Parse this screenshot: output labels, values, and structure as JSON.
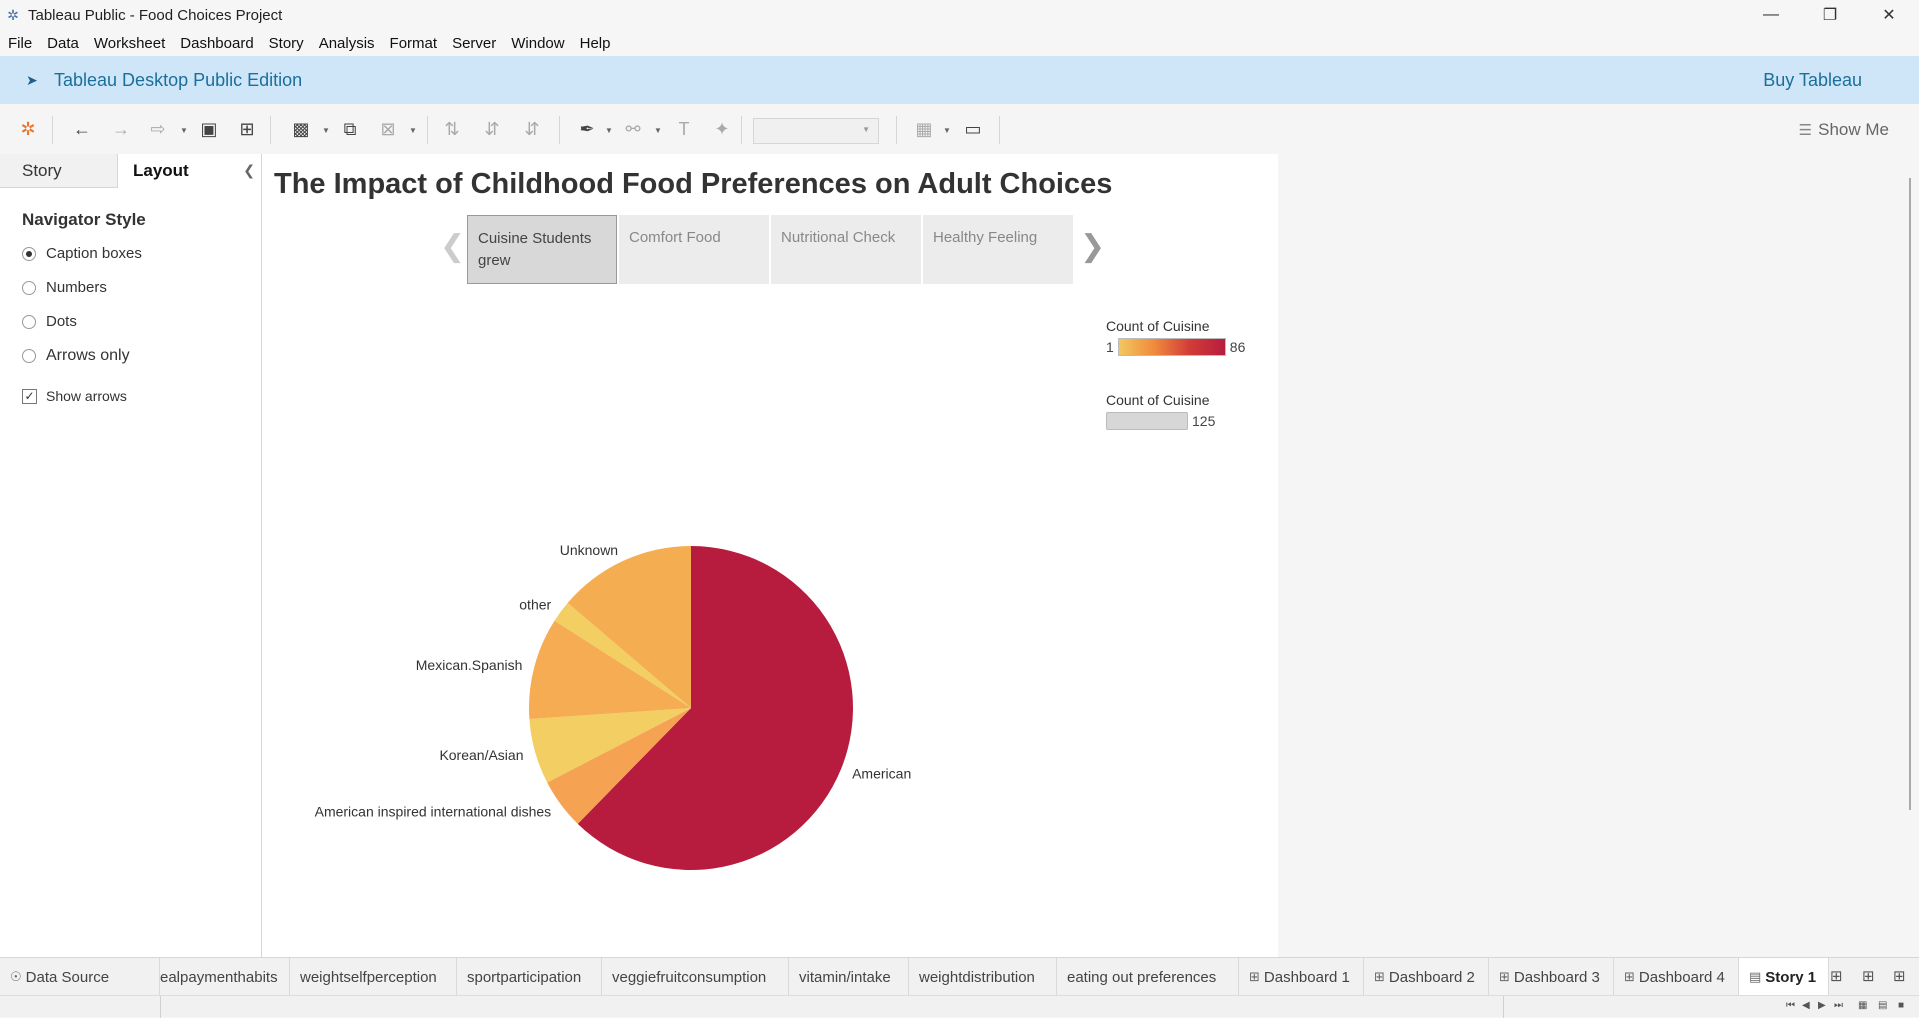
{
  "window": {
    "title": "Tableau Public - Food Choices Project",
    "controls": [
      "minimize-icon",
      "restore-icon",
      "close-icon"
    ]
  },
  "menu": [
    "File",
    "Data",
    "Worksheet",
    "Dashboard",
    "Story",
    "Analysis",
    "Format",
    "Server",
    "Window",
    "Help"
  ],
  "banner": {
    "edition": "Tableau Desktop Public Edition",
    "buy": "Buy Tableau"
  },
  "toolbar": {
    "show_me": "Show Me"
  },
  "side_panel": {
    "tabs": [
      "Story",
      "Layout"
    ],
    "heading": "Navigator Style",
    "options": [
      "Caption boxes",
      "Numbers",
      "Dots",
      "Arrows only"
    ],
    "selected_option": "Caption boxes",
    "show_arrows_label": "Show arrows",
    "show_arrows_checked": true
  },
  "story": {
    "title": "The Impact of Childhood Food Preferences on Adult Choices",
    "captions": [
      "Cuisine Students grew",
      "Comfort Food",
      "Nutritional Check",
      "Healthy Feeling"
    ],
    "selected_caption": "Cuisine Students grew"
  },
  "legends": {
    "color": {
      "title": "Count of Cuisine",
      "min": "1",
      "max": "86"
    },
    "size": {
      "title": "Count of Cuisine",
      "max": "125"
    }
  },
  "chart_data": {
    "type": "pie",
    "labels": [
      "American",
      "American inspired international dishes",
      "Korean/Asian",
      "Mexican.Spanish",
      "other",
      "Unknown"
    ],
    "values": [
      86,
      7,
      9,
      14,
      3,
      19
    ],
    "colors": [
      "#b71c3e",
      "#f5a352",
      "#f2ce63",
      "#f5ac52",
      "#f2ce63",
      "#f5ad52"
    ]
  },
  "bottom_tabs": [
    {
      "label": "Data Source",
      "icon": "database-icon"
    },
    {
      "label": "ealpaymenthabits"
    },
    {
      "label": "weightselfperception"
    },
    {
      "label": "sportparticipation"
    },
    {
      "label": "veggiefruitconsumption"
    },
    {
      "label": "vitamin/intake"
    },
    {
      "label": "weightdistribution"
    },
    {
      "label": "eating out preferences"
    },
    {
      "label": "Dashboard 1",
      "icon": "dashboard-icon"
    },
    {
      "label": "Dashboard 2",
      "icon": "dashboard-icon"
    },
    {
      "label": "Dashboard 3",
      "icon": "dashboard-icon"
    },
    {
      "label": "Dashboard 4",
      "icon": "dashboard-icon"
    },
    {
      "label": "Story 1",
      "icon": "story-icon",
      "active": true
    }
  ]
}
